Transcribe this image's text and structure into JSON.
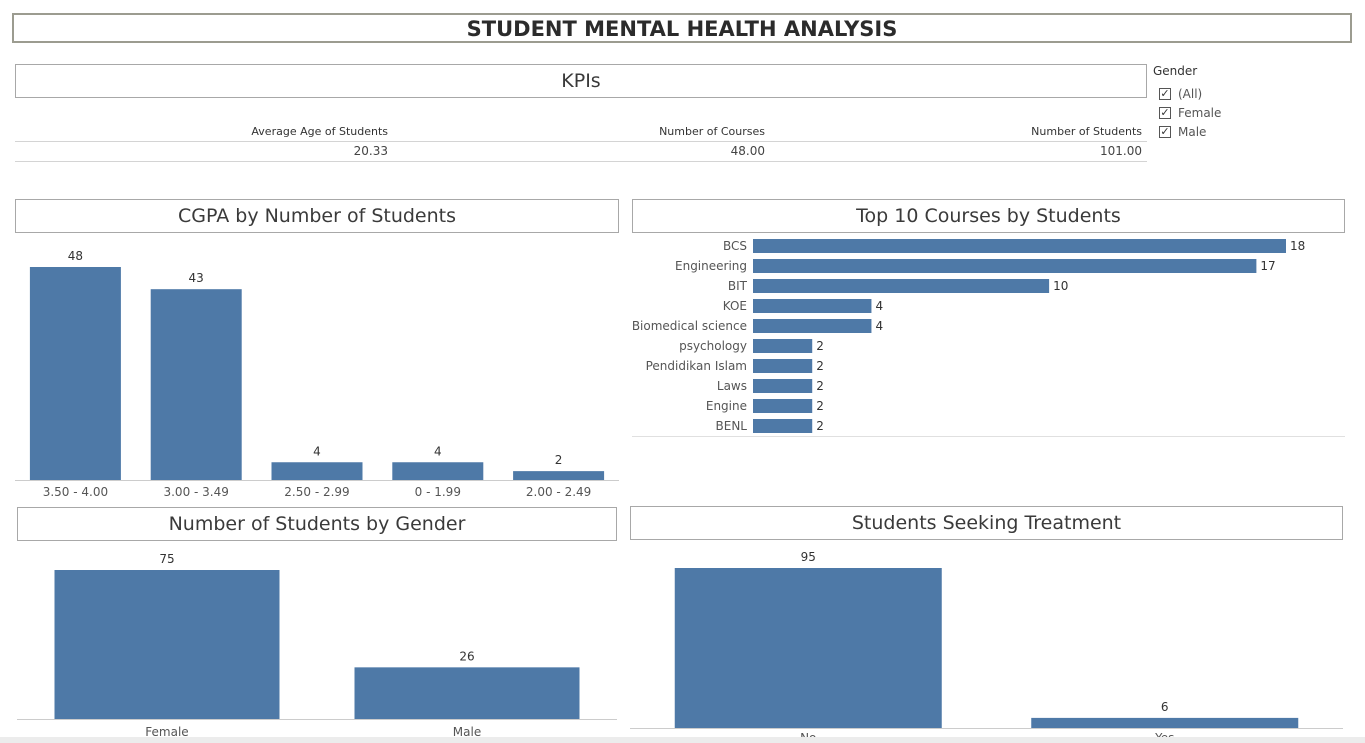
{
  "dashboard": {
    "title": "STUDENT MENTAL HEALTH ANALYSIS"
  },
  "kpis": {
    "title": "KPIs",
    "items": [
      {
        "label": "Average Age of Students",
        "value": "20.33"
      },
      {
        "label": "Number of Courses",
        "value": "48.00"
      },
      {
        "label": "Number of Students",
        "value": "101.00"
      }
    ]
  },
  "filter": {
    "title": "Gender",
    "options": [
      {
        "label": "(All)",
        "checked": true
      },
      {
        "label": "Female",
        "checked": true
      },
      {
        "label": "Male",
        "checked": true
      }
    ]
  },
  "colors": {
    "bar": "#4e79a7",
    "axis": "#cccccc",
    "text": "#333333"
  },
  "icons": {
    "check": "check-icon"
  },
  "chart_data": [
    {
      "id": "cgpa",
      "type": "bar",
      "title": "CGPA by Number of Students",
      "categories": [
        "3.50 - 4.00",
        "3.00 - 3.49",
        "2.50 - 2.99",
        "0 - 1.99",
        "2.00 - 2.49"
      ],
      "values": [
        48,
        43,
        4,
        4,
        2
      ],
      "ylim": [
        0,
        48
      ],
      "grid": false
    },
    {
      "id": "courses",
      "type": "bar",
      "orientation": "horizontal",
      "title": "Top 10 Courses by Students",
      "categories": [
        "BCS",
        "Engineering",
        "BIT",
        "KOE",
        "Biomedical science",
        "psychology",
        "Pendidikan Islam",
        "Laws",
        "Engine",
        "BENL"
      ],
      "values": [
        18,
        17,
        10,
        4,
        4,
        2,
        2,
        2,
        2,
        2
      ],
      "xlim": [
        0,
        18
      ],
      "grid": false
    },
    {
      "id": "gender",
      "type": "bar",
      "title": "Number of Students by Gender",
      "categories": [
        "Female",
        "Male"
      ],
      "values": [
        75,
        26
      ],
      "ylim": [
        0,
        75
      ],
      "grid": false
    },
    {
      "id": "treatment",
      "type": "bar",
      "title": "Students Seeking Treatment",
      "categories": [
        "No",
        "Yes"
      ],
      "values": [
        95,
        6
      ],
      "ylim": [
        0,
        95
      ],
      "grid": false
    }
  ]
}
